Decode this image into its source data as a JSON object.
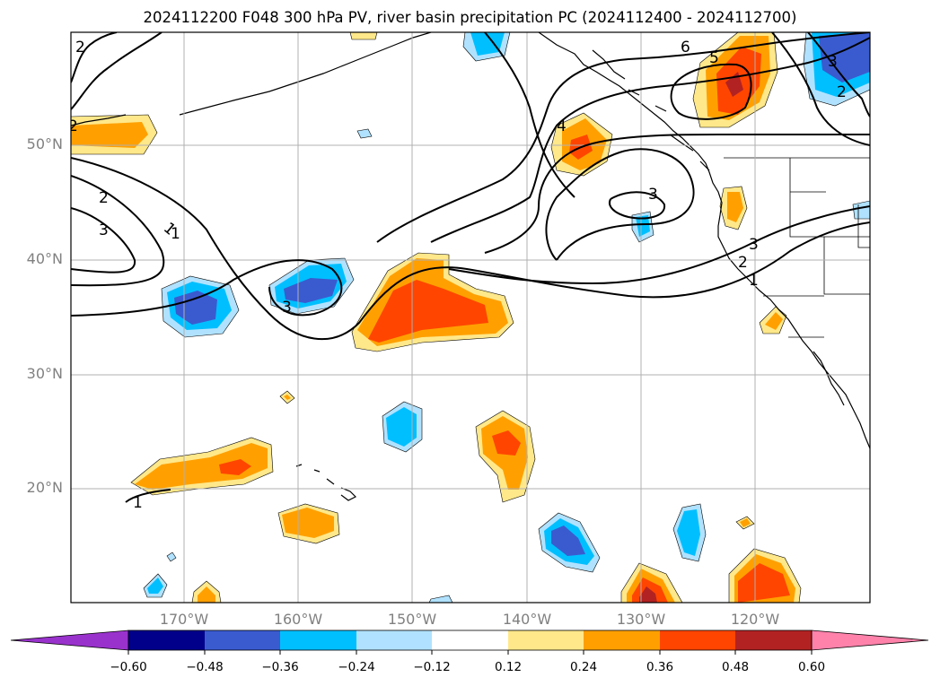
{
  "title": "2024112200 F048 300 hPa PV, river basin precipitation PC (2024112400 - 2024112700)",
  "map": {
    "lat_labels": [
      "50°N",
      "40°N",
      "30°N",
      "20°N"
    ],
    "lon_labels": [
      "170°W",
      "160°W",
      "150°W",
      "140°W",
      "130°W",
      "120°W"
    ],
    "contour_labels": [
      "1",
      "2",
      "3",
      "1",
      "2",
      "3",
      "2",
      "4",
      "3",
      "6",
      "5",
      "3",
      "2",
      "3",
      "2",
      "1",
      "1"
    ]
  },
  "colorbar": {
    "labels": [
      "−0.60",
      "−0.48",
      "−0.36",
      "−0.24",
      "−0.12",
      "0.12",
      "0.24",
      "0.36",
      "0.48",
      "0.60"
    ],
    "colors": [
      "#9932cc",
      "#00008b",
      "#3a5bd0",
      "#00bfff",
      "#b0e2ff",
      "#ffffff",
      "#ffe88a",
      "#ffa000",
      "#ff4500",
      "#b22222",
      "#ff82ab"
    ]
  },
  "shading_colors": {
    "neg_light": "#b0e2ff",
    "neg_mid": "#00bfff",
    "neg_dark": "#3a5bd0",
    "pos_light": "#ffe88a",
    "pos_mid": "#ffa000",
    "pos_dark": "#ff4500",
    "pos_max": "#b22222"
  }
}
